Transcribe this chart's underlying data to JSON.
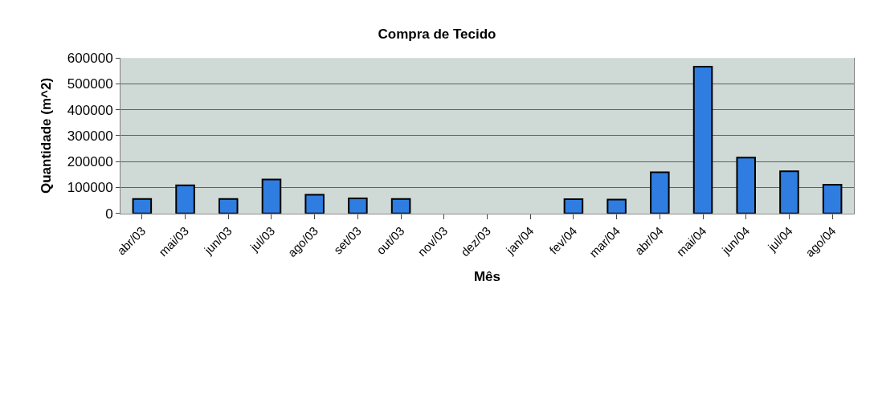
{
  "chart_data": {
    "type": "bar",
    "title": "Compra de Tecido",
    "xlabel": "Mês",
    "ylabel": "Quantidade (m^2)",
    "categories": [
      "abr/03",
      "mai/03",
      "jun/03",
      "jul/03",
      "ago/03",
      "set/03",
      "out/03",
      "nov/03",
      "dez/03",
      "jan/04",
      "fev/04",
      "mar/04",
      "abr/04",
      "mai/04",
      "jun/04",
      "jul/04",
      "ago/04"
    ],
    "values": [
      56000,
      108000,
      56000,
      131000,
      72000,
      58000,
      56000,
      null,
      null,
      null,
      55000,
      53000,
      159000,
      567000,
      215000,
      163000,
      111000
    ],
    "color": "#2f7de0",
    "ylim": [
      0,
      600000
    ],
    "yticks": [
      0,
      100000,
      200000,
      300000,
      400000,
      500000,
      600000
    ],
    "grid": "y"
  }
}
